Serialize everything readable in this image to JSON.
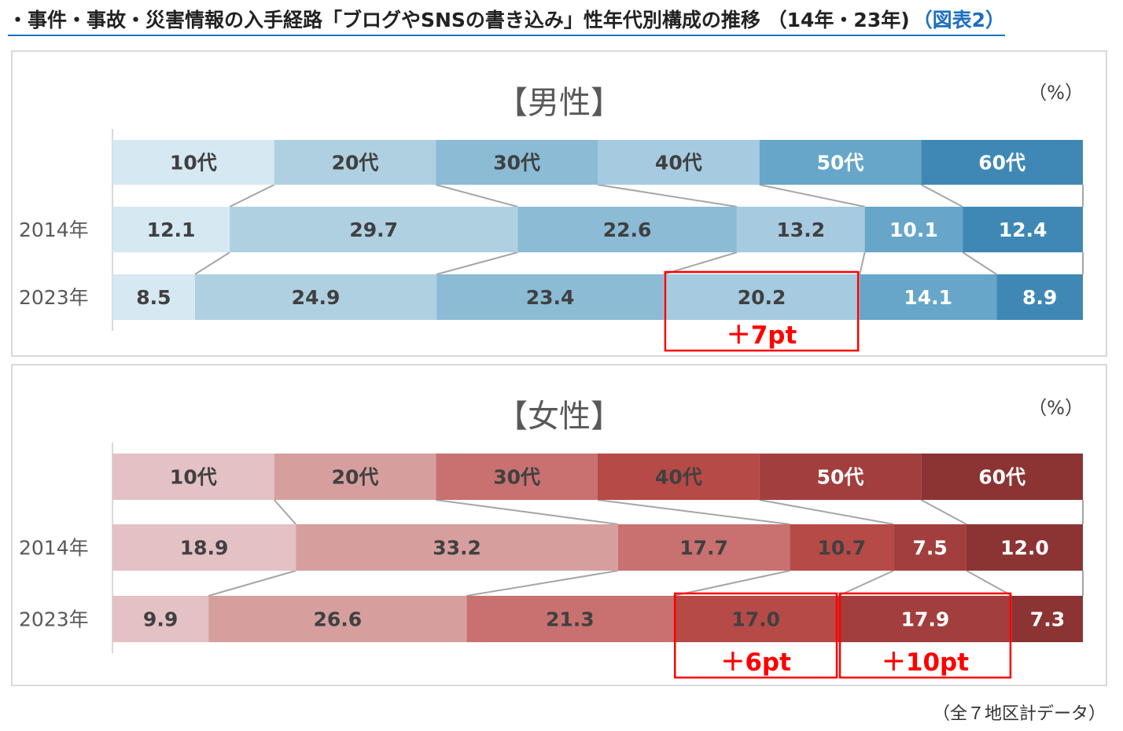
{
  "title": {
    "main": "・事件・事故・災害情報の入手経路「ブログやSNSの書き込み」性年代別構成の推移 （14年・23年)",
    "link": "（図表2）"
  },
  "footnote": "（全７地区計データ）",
  "chart_data": [
    {
      "type": "bar",
      "title": "【男性】",
      "unit": "（%）",
      "categories": [
        "10代",
        "20代",
        "30代",
        "40代",
        "50代",
        "60代"
      ],
      "series": [
        {
          "name": "2014年",
          "values": [
            12.1,
            29.7,
            22.6,
            13.2,
            10.1,
            12.4
          ]
        },
        {
          "name": "2023年",
          "values": [
            8.5,
            24.9,
            23.4,
            20.2,
            14.1,
            8.9
          ]
        }
      ],
      "stacked": true,
      "orientation": "horizontal",
      "colors": [
        "#d6e8f1",
        "#afd0e1",
        "#8bbbd5",
        "#a6cae0",
        "#67a6c9",
        "#3f88b6"
      ],
      "label_colors": [
        "#404040",
        "#404040",
        "#404040",
        "#404040",
        "#ffffff",
        "#ffffff"
      ],
      "annotations": [
        {
          "series": 1,
          "category_index": 3,
          "text": "＋7pt"
        }
      ]
    },
    {
      "type": "bar",
      "title": "【女性】",
      "unit": "（%）",
      "categories": [
        "10代",
        "20代",
        "30代",
        "40代",
        "50代",
        "60代"
      ],
      "series": [
        {
          "name": "2014年",
          "values": [
            18.9,
            33.2,
            17.7,
            10.7,
            7.5,
            12.0
          ]
        },
        {
          "name": "2023年",
          "values": [
            9.9,
            26.6,
            21.3,
            17.0,
            17.9,
            7.3
          ]
        }
      ],
      "stacked": true,
      "orientation": "horizontal",
      "colors": [
        "#e3c1c5",
        "#d69f9e",
        "#c87170",
        "#b64a47",
        "#a23f3e",
        "#8b3433"
      ],
      "label_colors": [
        "#404040",
        "#404040",
        "#404040",
        "#404040",
        "#ffffff",
        "#ffffff"
      ],
      "annotations": [
        {
          "series": 1,
          "category_index": 3,
          "text": "＋6pt"
        },
        {
          "series": 1,
          "category_index": 4,
          "text": "＋10pt"
        }
      ]
    }
  ]
}
